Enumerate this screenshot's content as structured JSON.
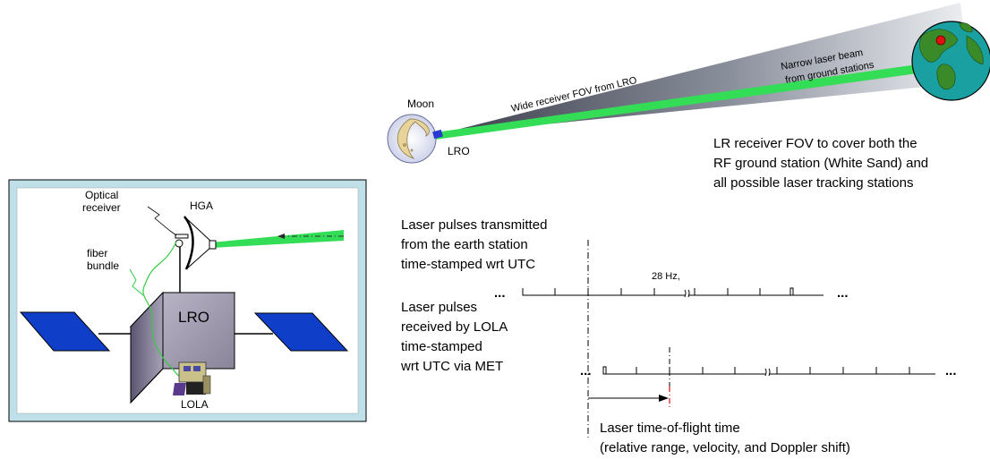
{
  "spacecraft_panel": {
    "optical_receiver_line1": "Optical",
    "optical_receiver_line2": "receiver",
    "hga_label": "HGA",
    "fiber_line1": "fiber",
    "fiber_line2": "bundle",
    "lro_body_label": "LRO",
    "lola_label": "LOLA"
  },
  "link_view": {
    "moon_label": "Moon",
    "lro_label": "LRO",
    "wide_fov_label": "Wide receiver FOV from LRO",
    "narrow_beam_line1": "Narrow laser beam",
    "narrow_beam_line2": "from ground stations",
    "fov_note_line1": "LR receiver FOV to cover both the",
    "fov_note_line2": "RF ground station (White Sand) and",
    "fov_note_line3": "all possible laser tracking stations"
  },
  "timing": {
    "transmit_line1": "Laser pulses transmitted",
    "transmit_line2": "from the earth station",
    "transmit_line3": "time-stamped wrt UTC",
    "rate_label": "28 Hz,",
    "receive_line1": "Laser pulses",
    "receive_line2": "received by LOLA",
    "receive_line3": "time-stamped",
    "receive_line4": "wrt UTC via MET",
    "tof_line1": "Laser time-of-flight time",
    "tof_line2": "(relative range, velocity, and Doppler shift)",
    "ellipsis": "..."
  },
  "colors": {
    "laser_green": "#33dd55",
    "panel_blue": "#0f3fc8",
    "frame_blue": "#bfe0e8",
    "earth_blue": "#1aa0a0",
    "earth_green": "#3a8a2a",
    "ground_station_red": "#e01010"
  }
}
